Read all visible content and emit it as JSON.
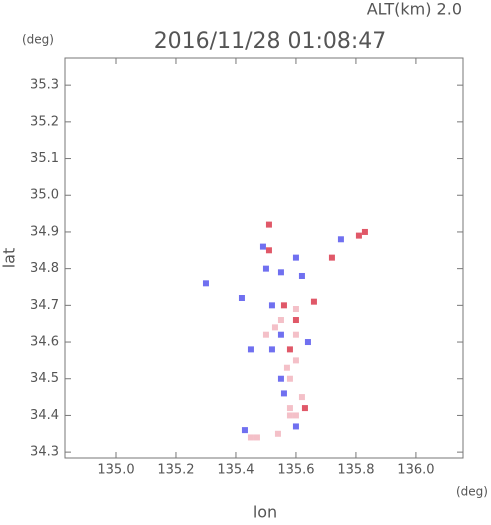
{
  "chart_data": {
    "type": "scatter",
    "title": "2016/11/28 01:08:47",
    "subtitle": "ALT(km) 2.0",
    "y_unit": "(deg)",
    "x_unit": "(deg)",
    "xlabel": "lon",
    "ylabel": "lat",
    "xlim": [
      134.83,
      136.157
    ],
    "ylim": [
      34.284,
      35.374
    ],
    "xticks": [
      {
        "value": 135.0,
        "label": "135.0"
      },
      {
        "value": 135.2,
        "label": "135.2"
      },
      {
        "value": 135.4,
        "label": "135.4"
      },
      {
        "value": 135.6,
        "label": "135.6"
      },
      {
        "value": 135.8,
        "label": "135.8"
      },
      {
        "value": 136.0,
        "label": "136.0"
      }
    ],
    "yticks": [
      {
        "value": 34.3,
        "label": "34.3"
      },
      {
        "value": 34.4,
        "label": "34.4"
      },
      {
        "value": 34.5,
        "label": "34.5"
      },
      {
        "value": 34.6,
        "label": "34.6"
      },
      {
        "value": 34.7,
        "label": "34.7"
      },
      {
        "value": 34.8,
        "label": "34.8"
      },
      {
        "value": 34.9,
        "label": "34.9"
      },
      {
        "value": 35.0,
        "label": "35.0"
      },
      {
        "value": 35.1,
        "label": "35.1"
      },
      {
        "value": 35.2,
        "label": "35.2"
      },
      {
        "value": 35.3,
        "label": "35.3"
      }
    ],
    "x": [
      135.51,
      135.81,
      135.83,
      135.75,
      135.49,
      135.51,
      135.6,
      135.72,
      135.5,
      135.55,
      135.62,
      135.3,
      135.42,
      135.52,
      135.56,
      135.6,
      135.55,
      135.6,
      135.5,
      135.55,
      135.6,
      135.45,
      135.52,
      135.58,
      135.6,
      135.55,
      135.58,
      135.56,
      135.62,
      135.58,
      135.63,
      135.58,
      135.6,
      135.6,
      135.54,
      135.45,
      135.43,
      135.47,
      135.53,
      135.64,
      135.57,
      135.66
    ],
    "y": [
      34.92,
      34.89,
      34.9,
      34.88,
      34.86,
      34.85,
      34.83,
      34.83,
      34.8,
      34.79,
      34.78,
      34.76,
      34.72,
      34.7,
      34.7,
      34.69,
      34.66,
      34.66,
      34.62,
      34.62,
      34.62,
      34.58,
      34.58,
      34.58,
      34.55,
      34.5,
      34.5,
      34.46,
      34.45,
      34.42,
      34.42,
      34.4,
      34.4,
      34.37,
      34.35,
      34.34,
      34.36,
      34.34,
      34.64,
      34.6,
      34.53,
      34.71
    ],
    "colors": [
      "#e05868",
      "#e05868",
      "#e05868",
      "#7070f0",
      "#7070f0",
      "#e05868",
      "#7070f0",
      "#e05868",
      "#7070f0",
      "#7070f0",
      "#7070f0",
      "#7070f0",
      "#7070f0",
      "#7070f0",
      "#e05868",
      "#f4c0c8",
      "#f4c0c8",
      "#e05868",
      "#f4c0c8",
      "#7070f0",
      "#f4c0c8",
      "#7070f0",
      "#7070f0",
      "#e05868",
      "#f4c0c8",
      "#7070f0",
      "#f4c0c8",
      "#7070f0",
      "#f4c0c8",
      "#f4c0c8",
      "#e05868",
      "#f4c0c8",
      "#f4c0c8",
      "#7070f0",
      "#f4c0c8",
      "#f4c0c8",
      "#7070f0",
      "#f4c0c8",
      "#f4c0c8",
      "#7070f0",
      "#f4c0c8",
      "#e05868"
    ]
  }
}
